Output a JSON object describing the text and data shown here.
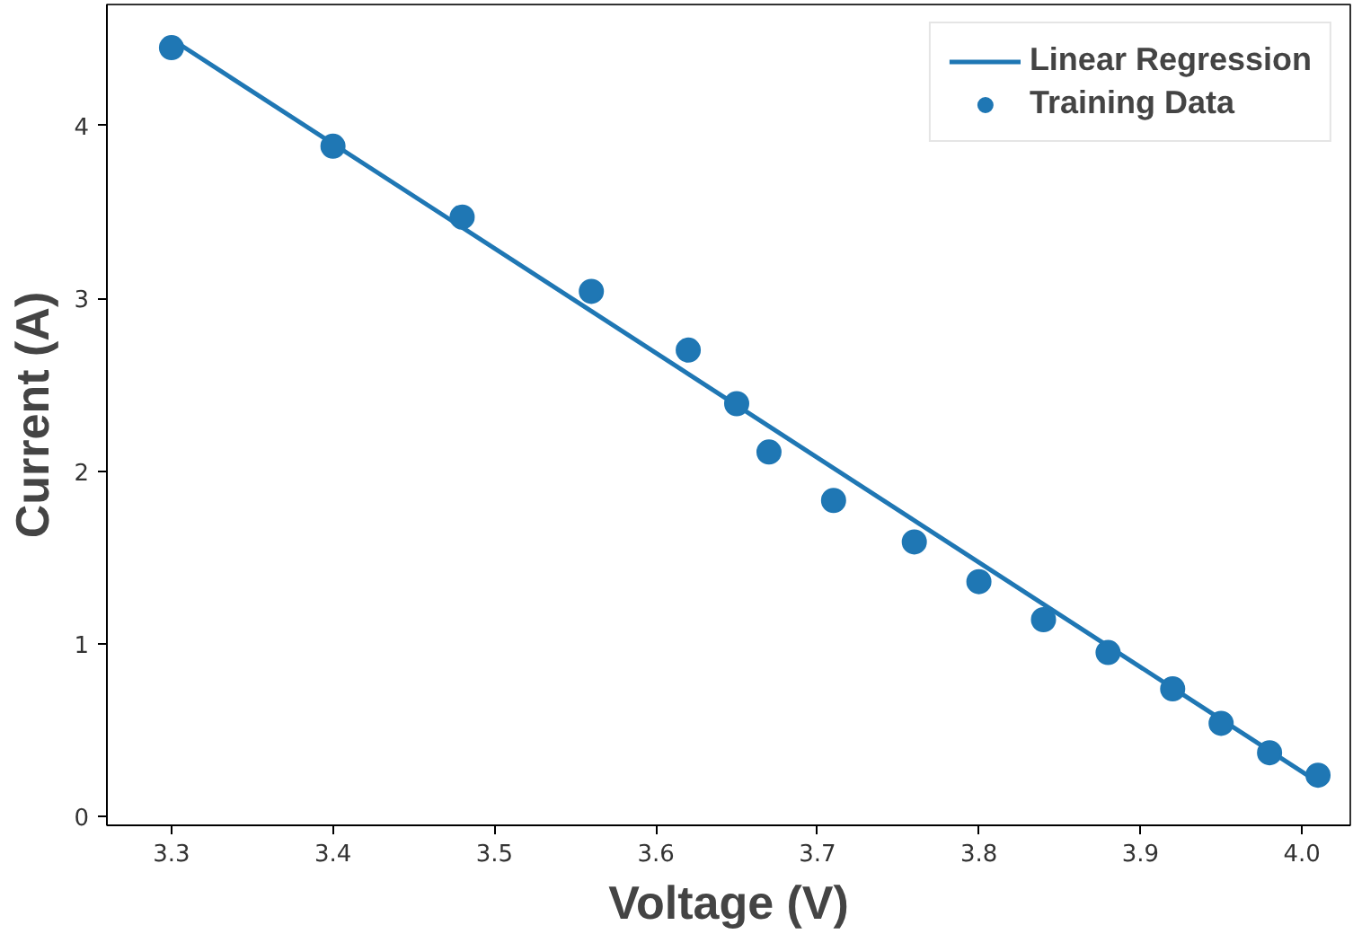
{
  "chart_data": {
    "type": "scatter",
    "xlabel": "Voltage (V)",
    "ylabel": "Current (A)",
    "xlim": [
      3.26,
      4.03
    ],
    "ylim": [
      -0.05,
      4.7
    ],
    "xticks": [
      {
        "value": 3.3,
        "label": "3.3"
      },
      {
        "value": 3.4,
        "label": "3.4"
      },
      {
        "value": 3.5,
        "label": "3.5"
      },
      {
        "value": 3.6,
        "label": "3.6"
      },
      {
        "value": 3.7,
        "label": "3.7"
      },
      {
        "value": 3.8,
        "label": "3.8"
      },
      {
        "value": 3.9,
        "label": "3.9"
      },
      {
        "value": 4.0,
        "label": "4.0"
      }
    ],
    "yticks": [
      0,
      1,
      2,
      3,
      4
    ],
    "legend": "top right",
    "grid": false,
    "series": [
      {
        "name": "Linear Regression",
        "type": "line",
        "color": "#1f77b4",
        "marker": "none",
        "x": [
          3.3,
          4.01
        ],
        "values": [
          4.5,
          0.2
        ]
      },
      {
        "name": "Training Data",
        "color": "#1f77b4",
        "marker": "circle",
        "x": [
          3.3,
          3.4,
          3.48,
          3.56,
          3.62,
          3.65,
          3.67,
          3.71,
          3.76,
          3.8,
          3.84,
          3.88,
          3.92,
          3.95,
          3.98,
          4.01
        ],
        "values": [
          4.45,
          3.88,
          3.47,
          3.04,
          2.7,
          2.39,
          2.11,
          1.83,
          1.59,
          1.36,
          1.14,
          0.95,
          0.74,
          0.54,
          0.37,
          0.24
        ]
      }
    ]
  }
}
